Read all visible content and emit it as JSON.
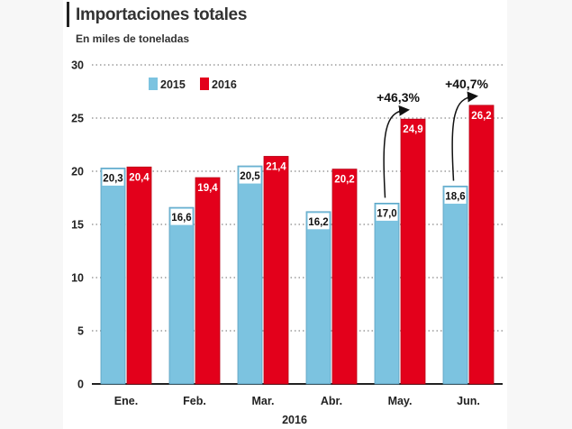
{
  "header": {
    "title": "Importaciones totales",
    "subtitle": "En miles de toneladas"
  },
  "chart_data": {
    "type": "bar",
    "title": "Importaciones totales",
    "subtitle": "En miles de toneladas",
    "xlabel": "2016",
    "ylabel": "",
    "ylim": [
      0,
      30
    ],
    "yticks": [
      0,
      5,
      10,
      15,
      20,
      25,
      30
    ],
    "grid": true,
    "legend_position": "top-left",
    "categories": [
      "Ene.",
      "Feb.",
      "Mar.",
      "Abr.",
      "May.",
      "Jun."
    ],
    "series": [
      {
        "name": "2015",
        "color": "#7cc3e0",
        "values": [
          20.3,
          16.6,
          20.5,
          16.2,
          17.0,
          18.6
        ],
        "labels": [
          "20,3",
          "16,6",
          "20,5",
          "16,2",
          "17,0",
          "18,6"
        ]
      },
      {
        "name": "2016",
        "color": "#e3001b",
        "values": [
          20.4,
          19.4,
          21.4,
          20.2,
          24.9,
          26.2
        ],
        "labels": [
          "20,4",
          "19,4",
          "21,4",
          "20,2",
          "24,9",
          "26,2"
        ]
      }
    ],
    "annotations": [
      {
        "category": "May.",
        "text": "+46,3%"
      },
      {
        "category": "Jun.",
        "text": "+40,7%"
      }
    ]
  }
}
